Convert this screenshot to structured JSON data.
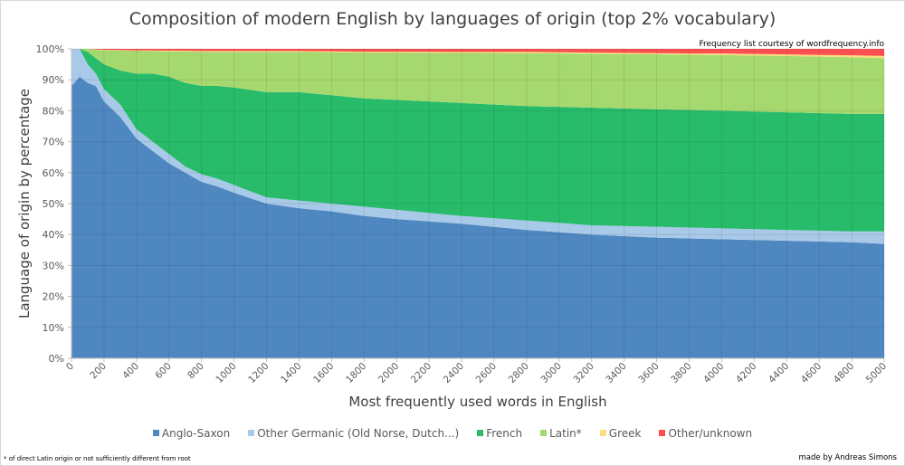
{
  "chart_data": {
    "type": "area",
    "stacked": true,
    "title": "Composition of modern English by languages of origin (top 2% vocabulary)",
    "xlabel": "Most frequently used words in English",
    "ylabel": "Language of origin by percentage",
    "xlim": [
      0,
      5000
    ],
    "ylim": [
      0,
      100
    ],
    "x_ticks": [
      "0",
      "200",
      "400",
      "600",
      "800",
      "1000",
      "1200",
      "1400",
      "1600",
      "1800",
      "2000",
      "2200",
      "2400",
      "2600",
      "2800",
      "3000",
      "3200",
      "3400",
      "3600",
      "3800",
      "4000",
      "4200",
      "4400",
      "4600",
      "4800",
      "5000"
    ],
    "y_ticks": [
      "0%",
      "10%",
      "20%",
      "30%",
      "40%",
      "50%",
      "60%",
      "70%",
      "80%",
      "90%",
      "100%"
    ],
    "grid": true,
    "legend_position": "bottom",
    "x": [
      0,
      50,
      100,
      150,
      200,
      300,
      400,
      500,
      600,
      700,
      800,
      900,
      1000,
      1200,
      1400,
      1600,
      1800,
      2000,
      2400,
      2800,
      3200,
      3600,
      4000,
      4400,
      4800,
      5000
    ],
    "series": [
      {
        "name": "Anglo-Saxon",
        "color": "#4f88c0",
        "values": [
          88,
          91,
          89,
          88,
          83,
          78,
          71,
          67,
          63,
          60,
          57,
          55.5,
          53.5,
          50,
          48.5,
          47.5,
          46,
          45,
          43.5,
          41.5,
          40,
          39,
          38.5,
          38,
          37.5,
          37
        ]
      },
      {
        "name": "Other Germanic (Old Norse, Dutch...)",
        "color": "#a9c9e8",
        "values": [
          12,
          9,
          6,
          4,
          4,
          4,
          3,
          3,
          3,
          2,
          2.5,
          2.5,
          2.5,
          2,
          2.5,
          2.5,
          3,
          3,
          2.5,
          3,
          3,
          3.5,
          3.5,
          3.5,
          3.5,
          4
        ]
      },
      {
        "name": "French",
        "color": "#27bb6a",
        "values": [
          0,
          0,
          4,
          5,
          8,
          11,
          18,
          22,
          25,
          27,
          28.5,
          30,
          31.5,
          34,
          35,
          35,
          35,
          35.5,
          36.5,
          37,
          38,
          38,
          38,
          38,
          38,
          38
        ]
      },
      {
        "name": "Latin*",
        "color": "#a6d870",
        "values": [
          0,
          0,
          1,
          2.7,
          4.6,
          6.5,
          7.4,
          7.3,
          8.2,
          10.2,
          11.1,
          11,
          11.5,
          13,
          13,
          13.9,
          14.8,
          15.3,
          16.2,
          17.1,
          17.4,
          17.7,
          18,
          18.2,
          18.3,
          18
        ]
      },
      {
        "name": "Greek",
        "color": "#fedd80",
        "values": [
          0,
          0,
          0,
          0.1,
          0.1,
          0.1,
          0.1,
          0.2,
          0.2,
          0.2,
          0.2,
          0.3,
          0.3,
          0.3,
          0.3,
          0.3,
          0.3,
          0.3,
          0.3,
          0.4,
          0.4,
          0.4,
          0.5,
          0.5,
          0.6,
          0.7
        ]
      },
      {
        "name": "Other/unknown",
        "color": "#fc5050",
        "values": [
          0,
          0,
          0,
          0.2,
          0.3,
          0.4,
          0.5,
          0.5,
          0.6,
          0.6,
          0.7,
          0.7,
          0.7,
          0.7,
          0.7,
          0.8,
          0.9,
          0.9,
          1,
          1,
          1.2,
          1.4,
          1.5,
          1.8,
          2.1,
          2.3
        ]
      }
    ]
  },
  "credit": "Frequency list courtesy of wordfrequency.info",
  "footnote": "* of direct Latin origin or not sufficiently different from root",
  "author": "made by Andreas Simons"
}
